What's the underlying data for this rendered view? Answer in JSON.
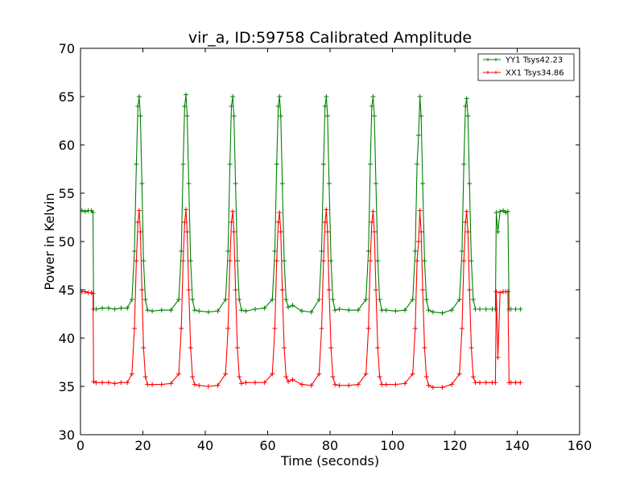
{
  "chart_data": {
    "type": "line",
    "title": "vir_a, ID:59758 Calibrated Amplitude",
    "xlabel": "Time (seconds)",
    "ylabel": "Power in Kelvin",
    "xlim": [
      0,
      160
    ],
    "ylim": [
      30,
      70
    ],
    "xticks": [
      0,
      20,
      40,
      60,
      80,
      100,
      120,
      140,
      160
    ],
    "yticks": [
      30,
      35,
      40,
      45,
      50,
      55,
      60,
      65,
      70
    ],
    "grid": false,
    "legend_position": "top-right",
    "marker": "plus",
    "series": [
      {
        "name": "YY1 Tsys42.23",
        "color": "#008000",
        "x": [
          0.5,
          1.5,
          2.5,
          3.5,
          4.0,
          4.2,
          5,
          7,
          9,
          11,
          13,
          15,
          16.5,
          17.3,
          17.9,
          18.4,
          18.8,
          19.2,
          19.7,
          20.2,
          20.8,
          21.5,
          23,
          26,
          29,
          31.5,
          32.3,
          32.9,
          33.4,
          33.8,
          34.2,
          34.7,
          35.3,
          35.9,
          36.6,
          38,
          41,
          44,
          46.5,
          47.3,
          47.9,
          48.4,
          48.8,
          49.2,
          49.7,
          50.3,
          50.9,
          51.6,
          53,
          56,
          59,
          61.5,
          62.3,
          62.9,
          63.4,
          63.8,
          64.2,
          64.7,
          65.3,
          65.9,
          66.6,
          68,
          71,
          74,
          76.5,
          77.3,
          77.9,
          78.4,
          78.8,
          79.2,
          79.7,
          80.3,
          80.9,
          81.6,
          83,
          86,
          89,
          91.5,
          92.3,
          92.9,
          93.4,
          93.8,
          94.2,
          94.7,
          95.3,
          95.9,
          96.6,
          98,
          101,
          104,
          106.5,
          107.3,
          107.9,
          108.4,
          108.8,
          109.2,
          109.7,
          110.3,
          110.9,
          111.6,
          113,
          116,
          119,
          121.5,
          122.3,
          122.9,
          123.4,
          123.8,
          124.2,
          124.7,
          125.3,
          125.9,
          126.6,
          128,
          130,
          132,
          133.0,
          133.3,
          133.8,
          134.5,
          135.5,
          136.3,
          137.0,
          137.4,
          138,
          139.5,
          141
        ],
        "y": [
          53.2,
          53.1,
          53.2,
          53.2,
          53.0,
          43.0,
          43.0,
          43.1,
          43.1,
          43.0,
          43.1,
          43.1,
          44.0,
          49.0,
          58.0,
          64.0,
          65.0,
          63.0,
          56.0,
          48.0,
          44.0,
          42.9,
          42.8,
          42.9,
          42.9,
          44.0,
          49.0,
          58.0,
          64.0,
          65.2,
          63.0,
          56.0,
          48.0,
          44.0,
          42.9,
          42.8,
          42.7,
          42.8,
          44.0,
          49.0,
          58.0,
          64.0,
          65.0,
          63.0,
          56.0,
          48.0,
          44.0,
          42.9,
          42.8,
          43.0,
          43.1,
          44.0,
          49.0,
          58.0,
          64.0,
          65.0,
          63.0,
          56.0,
          48.0,
          44.0,
          43.2,
          43.4,
          42.8,
          42.7,
          44.0,
          49.0,
          58.0,
          64.0,
          65.0,
          63.0,
          56.0,
          48.0,
          44.0,
          42.9,
          43.0,
          42.9,
          42.9,
          44.0,
          49.0,
          58.0,
          64.0,
          65.0,
          63.0,
          56.0,
          48.0,
          44.0,
          42.9,
          42.9,
          42.8,
          42.9,
          44.0,
          49.0,
          58.0,
          61.0,
          65.0,
          63.0,
          56.0,
          48.0,
          44.0,
          42.9,
          42.7,
          42.6,
          42.9,
          44.0,
          49.0,
          58.0,
          64.0,
          64.8,
          63.0,
          56.0,
          48.0,
          44.0,
          43.0,
          43.0,
          43.0,
          43.0,
          43.0,
          53.0,
          51.0,
          53.1,
          53.2,
          53.0,
          53.1,
          43.0,
          43.0,
          43.0,
          43.0
        ]
      },
      {
        "name": "XX1 Tsys34.86",
        "color": "#ff0000",
        "x": [
          0.5,
          1.5,
          2.5,
          3.5,
          4.0,
          4.2,
          5,
          7,
          9,
          11,
          13,
          15,
          16.5,
          17.3,
          17.9,
          18.4,
          18.8,
          19.2,
          19.7,
          20.2,
          20.8,
          21.5,
          23,
          26,
          29,
          31.5,
          32.3,
          32.9,
          33.4,
          33.8,
          34.2,
          34.7,
          35.3,
          35.9,
          36.6,
          38,
          41,
          44,
          46.5,
          47.3,
          47.9,
          48.4,
          48.8,
          49.2,
          49.7,
          50.3,
          50.9,
          51.6,
          53,
          56,
          59,
          61.5,
          62.3,
          62.9,
          63.4,
          63.8,
          64.2,
          64.7,
          65.3,
          65.9,
          66.6,
          68,
          71,
          74,
          76.5,
          77.3,
          77.9,
          78.4,
          78.8,
          79.2,
          79.7,
          80.3,
          80.9,
          81.6,
          83,
          86,
          89,
          91.5,
          92.3,
          92.9,
          93.4,
          93.8,
          94.2,
          94.7,
          95.3,
          95.9,
          96.6,
          98,
          101,
          104,
          106.5,
          107.3,
          107.9,
          108.4,
          108.8,
          109.2,
          109.7,
          110.3,
          110.9,
          111.6,
          113,
          116,
          119,
          121.5,
          122.3,
          122.9,
          123.4,
          123.8,
          124.2,
          124.7,
          125.3,
          125.9,
          126.6,
          128,
          130,
          132,
          133.0,
          133.3,
          133.8,
          134.5,
          135.5,
          136.3,
          137.0,
          137.4,
          138,
          139.5,
          141
        ],
        "y": [
          44.8,
          44.8,
          44.7,
          44.7,
          44.6,
          35.5,
          35.4,
          35.4,
          35.4,
          35.3,
          35.4,
          35.4,
          36.3,
          41.0,
          48.0,
          52.0,
          53.2,
          51.0,
          45.0,
          39.0,
          36.0,
          35.2,
          35.2,
          35.2,
          35.3,
          36.3,
          41.0,
          48.0,
          52.0,
          53.3,
          51.0,
          45.0,
          39.0,
          36.0,
          35.2,
          35.1,
          35.0,
          35.1,
          36.3,
          41.0,
          48.0,
          52.0,
          53.1,
          51.0,
          45.0,
          39.0,
          36.0,
          35.3,
          35.4,
          35.4,
          35.4,
          36.3,
          41.0,
          48.0,
          52.0,
          53.0,
          51.0,
          45.0,
          39.0,
          36.0,
          35.5,
          35.7,
          35.2,
          35.1,
          36.3,
          41.0,
          48.0,
          52.0,
          53.3,
          51.0,
          45.0,
          39.0,
          36.0,
          35.2,
          35.1,
          35.1,
          35.2,
          36.3,
          41.0,
          48.0,
          52.0,
          53.1,
          51.0,
          45.0,
          39.0,
          36.0,
          35.2,
          35.2,
          35.2,
          35.3,
          36.3,
          41.0,
          48.0,
          50.0,
          53.2,
          51.0,
          45.0,
          39.0,
          36.0,
          35.1,
          34.9,
          34.9,
          35.2,
          36.3,
          41.0,
          48.0,
          52.0,
          53.1,
          51.0,
          45.0,
          39.0,
          36.0,
          35.4,
          35.4,
          35.4,
          35.4,
          35.4,
          44.8,
          38.0,
          44.7,
          44.8,
          44.8,
          44.8,
          35.4,
          35.4,
          35.4,
          35.4
        ]
      }
    ]
  }
}
